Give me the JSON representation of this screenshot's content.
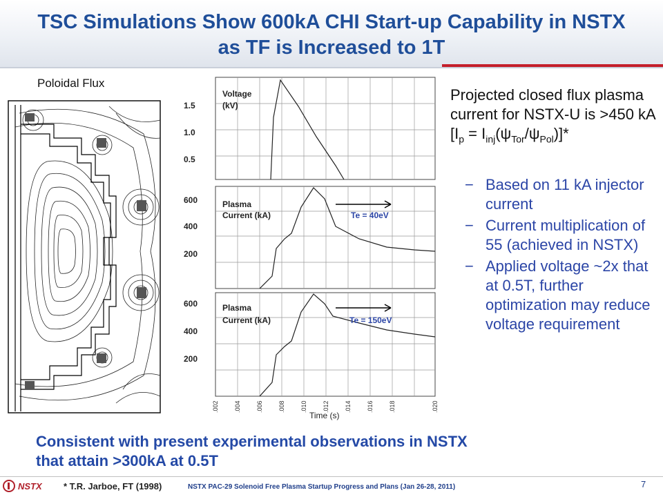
{
  "slide": {
    "title_line1": "TSC Simulations Show 600kA CHI Start-up Capability in NSTX",
    "title_line2": "as TF is Increased to 1T"
  },
  "flux_plot": {
    "label": "Poloidal Flux"
  },
  "plots": {
    "x_axis_label": "Time (s)",
    "x_ticks": [
      ".002",
      ".004",
      ".006",
      ".008",
      ".010",
      ".012",
      ".014",
      ".016",
      ".018",
      ".020"
    ],
    "voltage": {
      "label_line1": "Voltage",
      "label_line2": "(kV)",
      "y_ticks": [
        "1.5",
        "1.0",
        "0.5"
      ]
    },
    "current1": {
      "label_line1": "Plasma",
      "label_line2": "Current (kA)",
      "y_ticks": [
        "600",
        "400",
        "200"
      ],
      "annotation": "Te = 40eV"
    },
    "current2": {
      "label_line1": "Plasma",
      "label_line2": "Current (kA)",
      "y_ticks": [
        "600",
        "400",
        "200"
      ],
      "annotation": "Te = 150eV"
    }
  },
  "right_text": {
    "p1": "Projected closed flux plasma current for NSTX-U is >450 kA [I",
    "sub_p": "p",
    "p2": " = I",
    "sub_inj": "inj",
    "p3": "(ψ",
    "sub_tor": "Tor",
    "p4": "/ψ",
    "sub_pol": "Pol",
    "p5": ")]*"
  },
  "bullets": [
    "Based on 11 kA injector current",
    "Current multiplication of 55 (achieved in NSTX)",
    "Applied voltage ~2x that at 0.5T, further optimization may reduce voltage requirement"
  ],
  "bullet_marker": "−",
  "conclusion": {
    "line1": "Consistent with present experimental observations in NSTX",
    "line2": "that attain >300kA at 0.5T"
  },
  "footer": {
    "logo_text": "NSTX",
    "footnote": "* T.R. Jarboe, FT (1998)",
    "center": "NSTX PAC-29  Solenoid Free Plasma Startup Progress and Plans (Jan 26-28, 2011)",
    "page": "7"
  },
  "colors": {
    "title": "#1f4e99",
    "bullet_text": "#2b45a6",
    "conclusion": "#2449a6",
    "accent_red": "#c41e2a"
  }
}
